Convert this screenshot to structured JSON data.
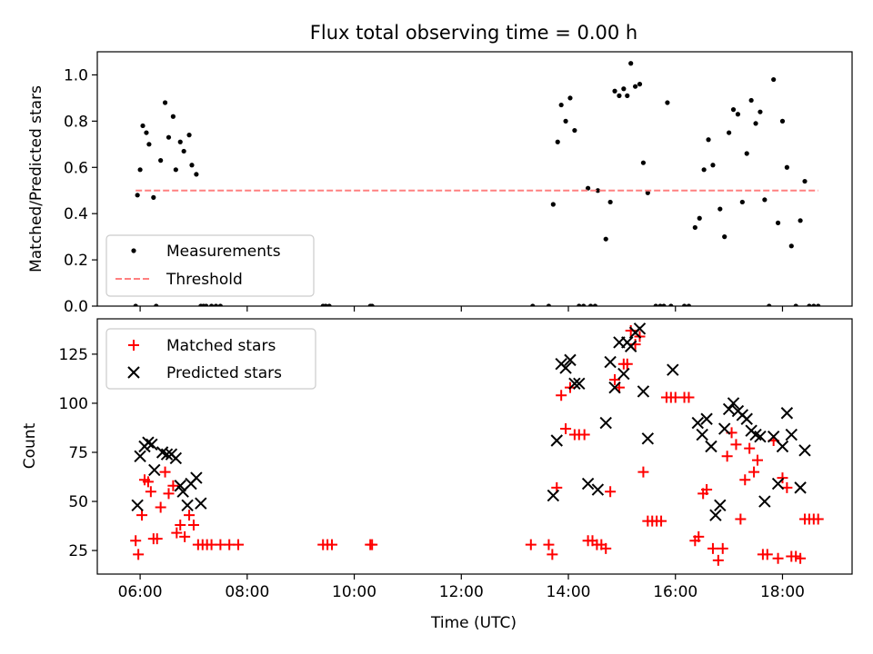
{
  "chart_data": [
    {
      "type": "scatter",
      "title": "Flux total observing time = 0.00 h",
      "xlabel": "",
      "ylabel": "Matched/Predicted stars",
      "xlim": [
        "05:12",
        "19:18"
      ],
      "ylim": [
        0,
        1.1
      ],
      "x_tick_labels": [
        "06:00",
        "08:00",
        "10:00",
        "12:00",
        "14:00",
        "16:00",
        "18:00"
      ],
      "y_ticks": [
        0.0,
        0.2,
        0.4,
        0.6,
        0.8,
        1.0
      ],
      "y_tick_labels": [
        "0.0",
        "0.2",
        "0.4",
        "0.6",
        "0.8",
        "1.0"
      ],
      "legend_position": "lower-left",
      "series": [
        {
          "name": "Measurements",
          "color": "#000000",
          "marker": "dot",
          "points": [
            [
              "05:55",
              0.0
            ],
            [
              "05:57",
              0.48
            ],
            [
              "06:00",
              0.59
            ],
            [
              "06:03",
              0.78
            ],
            [
              "06:07",
              0.75
            ],
            [
              "06:10",
              0.7
            ],
            [
              "06:15",
              0.47
            ],
            [
              "06:18",
              0.0
            ],
            [
              "06:23",
              0.63
            ],
            [
              "06:28",
              0.88
            ],
            [
              "06:32",
              0.73
            ],
            [
              "06:37",
              0.82
            ],
            [
              "06:40",
              0.59
            ],
            [
              "06:45",
              0.71
            ],
            [
              "06:49",
              0.67
            ],
            [
              "06:55",
              0.74
            ],
            [
              "06:58",
              0.61
            ],
            [
              "07:03",
              0.57
            ],
            [
              "07:08",
              0.0
            ],
            [
              "07:11",
              0.0
            ],
            [
              "07:14",
              0.0
            ],
            [
              "07:20",
              0.0
            ],
            [
              "07:25",
              0.0
            ],
            [
              "07:30",
              0.0
            ],
            [
              "09:25",
              0.0
            ],
            [
              "09:28",
              0.0
            ],
            [
              "09:32",
              0.0
            ],
            [
              "10:18",
              0.0
            ],
            [
              "10:20",
              0.0
            ],
            [
              "13:20",
              0.0
            ],
            [
              "13:38",
              0.0
            ],
            [
              "13:43",
              0.44
            ],
            [
              "13:48",
              0.71
            ],
            [
              "13:52",
              0.87
            ],
            [
              "13:57",
              0.8
            ],
            [
              "14:02",
              0.9
            ],
            [
              "14:07",
              0.76
            ],
            [
              "14:12",
              0.0
            ],
            [
              "14:17",
              0.0
            ],
            [
              "14:22",
              0.51
            ],
            [
              "14:25",
              0.0
            ],
            [
              "14:30",
              0.0
            ],
            [
              "14:33",
              0.5
            ],
            [
              "14:42",
              0.29
            ],
            [
              "14:47",
              0.45
            ],
            [
              "14:52",
              0.93
            ],
            [
              "14:57",
              0.91
            ],
            [
              "15:02",
              0.94
            ],
            [
              "15:06",
              0.91
            ],
            [
              "15:10",
              1.05
            ],
            [
              "15:15",
              0.95
            ],
            [
              "15:20",
              0.96
            ],
            [
              "15:24",
              0.62
            ],
            [
              "15:29",
              0.49
            ],
            [
              "15:38",
              0.0
            ],
            [
              "15:43",
              0.0
            ],
            [
              "15:47",
              0.0
            ],
            [
              "15:51",
              0.88
            ],
            [
              "15:55",
              0.0
            ],
            [
              "16:10",
              0.0
            ],
            [
              "16:15",
              0.0
            ],
            [
              "16:22",
              0.34
            ],
            [
              "16:27",
              0.38
            ],
            [
              "16:32",
              0.59
            ],
            [
              "16:37",
              0.72
            ],
            [
              "16:42",
              0.61
            ],
            [
              "16:50",
              0.42
            ],
            [
              "16:55",
              0.3
            ],
            [
              "17:00",
              0.75
            ],
            [
              "17:05",
              0.85
            ],
            [
              "17:10",
              0.83
            ],
            [
              "17:15",
              0.45
            ],
            [
              "17:20",
              0.66
            ],
            [
              "17:25",
              0.89
            ],
            [
              "17:30",
              0.79
            ],
            [
              "17:35",
              0.84
            ],
            [
              "17:40",
              0.46
            ],
            [
              "17:45",
              0.0
            ],
            [
              "17:50",
              0.98
            ],
            [
              "17:55",
              0.36
            ],
            [
              "18:00",
              0.8
            ],
            [
              "18:05",
              0.6
            ],
            [
              "18:10",
              0.26
            ],
            [
              "18:15",
              0.0
            ],
            [
              "18:20",
              0.37
            ],
            [
              "18:25",
              0.54
            ],
            [
              "18:30",
              0.0
            ],
            [
              "18:35",
              0.0
            ],
            [
              "18:40",
              0.0
            ]
          ]
        },
        {
          "name": "Threshold",
          "color": "#ff8080",
          "style": "dashed",
          "points": [
            [
              "05:55",
              0.5
            ],
            [
              "18:40",
              0.5
            ]
          ]
        }
      ]
    },
    {
      "type": "scatter",
      "title": "",
      "xlabel": "Time (UTC)",
      "ylabel": "Count",
      "xlim": [
        "05:12",
        "19:18"
      ],
      "ylim": [
        13,
        143
      ],
      "x_tick_labels": [
        "06:00",
        "08:00",
        "10:00",
        "12:00",
        "14:00",
        "16:00",
        "18:00"
      ],
      "y_ticks": [
        25,
        50,
        75,
        100,
        125
      ],
      "y_tick_labels": [
        "25",
        "50",
        "75",
        "100",
        "125"
      ],
      "legend_position": "top-left",
      "series": [
        {
          "name": "Matched stars",
          "color": "#ff0000",
          "marker": "plus",
          "points": [
            [
              "05:55",
              30
            ],
            [
              "05:58",
              23
            ],
            [
              "06:02",
              43
            ],
            [
              "06:05",
              61
            ],
            [
              "06:09",
              60
            ],
            [
              "06:12",
              55
            ],
            [
              "06:15",
              31
            ],
            [
              "06:19",
              31
            ],
            [
              "06:23",
              47
            ],
            [
              "06:28",
              65
            ],
            [
              "06:32",
              54
            ],
            [
              "06:37",
              58
            ],
            [
              "06:41",
              34
            ],
            [
              "06:45",
              38
            ],
            [
              "06:50",
              32
            ],
            [
              "06:55",
              43
            ],
            [
              "07:00",
              38
            ],
            [
              "07:05",
              28
            ],
            [
              "07:10",
              28
            ],
            [
              "07:15",
              28
            ],
            [
              "07:20",
              28
            ],
            [
              "07:30",
              28
            ],
            [
              "07:40",
              28
            ],
            [
              "07:50",
              28
            ],
            [
              "09:25",
              28
            ],
            [
              "09:30",
              28
            ],
            [
              "09:35",
              28
            ],
            [
              "10:18",
              28
            ],
            [
              "10:20",
              28
            ],
            [
              "13:18",
              28
            ],
            [
              "13:38",
              28
            ],
            [
              "13:42",
              23
            ],
            [
              "13:47",
              57
            ],
            [
              "13:52",
              104
            ],
            [
              "13:57",
              87
            ],
            [
              "14:02",
              108
            ],
            [
              "14:07",
              84
            ],
            [
              "14:12",
              84
            ],
            [
              "14:18",
              84
            ],
            [
              "14:22",
              30
            ],
            [
              "14:27",
              30
            ],
            [
              "14:32",
              28
            ],
            [
              "14:37",
              28
            ],
            [
              "14:42",
              26
            ],
            [
              "14:47",
              55
            ],
            [
              "14:52",
              112
            ],
            [
              "14:57",
              108
            ],
            [
              "15:02",
              120
            ],
            [
              "15:06",
              120
            ],
            [
              "15:10",
              137
            ],
            [
              "15:15",
              130
            ],
            [
              "15:20",
              134
            ],
            [
              "15:24",
              65
            ],
            [
              "15:29",
              40
            ],
            [
              "15:34",
              40
            ],
            [
              "15:39",
              40
            ],
            [
              "15:44",
              40
            ],
            [
              "15:50",
              103
            ],
            [
              "15:55",
              103
            ],
            [
              "16:00",
              103
            ],
            [
              "16:10",
              103
            ],
            [
              "16:15",
              103
            ],
            [
              "16:22",
              30
            ],
            [
              "16:26",
              32
            ],
            [
              "16:31",
              54
            ],
            [
              "16:35",
              56
            ],
            [
              "16:42",
              26
            ],
            [
              "16:48",
              20
            ],
            [
              "16:53",
              26
            ],
            [
              "16:58",
              73
            ],
            [
              "17:03",
              85
            ],
            [
              "17:08",
              79
            ],
            [
              "17:13",
              41
            ],
            [
              "17:18",
              61
            ],
            [
              "17:23",
              77
            ],
            [
              "17:28",
              65
            ],
            [
              "17:32",
              71
            ],
            [
              "17:38",
              23
            ],
            [
              "17:43",
              23
            ],
            [
              "17:50",
              81
            ],
            [
              "17:55",
              21
            ],
            [
              "18:00",
              62
            ],
            [
              "18:05",
              57
            ],
            [
              "18:10",
              22
            ],
            [
              "18:15",
              22
            ],
            [
              "18:20",
              21
            ],
            [
              "18:25",
              41
            ],
            [
              "18:30",
              41
            ],
            [
              "18:35",
              41
            ],
            [
              "18:40",
              41
            ]
          ]
        },
        {
          "name": "Predicted stars",
          "color": "#000000",
          "marker": "x",
          "points": [
            [
              "05:57",
              48
            ],
            [
              "06:00",
              73
            ],
            [
              "06:05",
              78
            ],
            [
              "06:09",
              80
            ],
            [
              "06:13",
              79
            ],
            [
              "06:16",
              66
            ],
            [
              "06:25",
              75
            ],
            [
              "06:30",
              74
            ],
            [
              "06:35",
              74
            ],
            [
              "06:40",
              72
            ],
            [
              "06:45",
              58
            ],
            [
              "06:48",
              55
            ],
            [
              "06:53",
              48
            ],
            [
              "06:57",
              59
            ],
            [
              "07:03",
              62
            ],
            [
              "07:08",
              49
            ],
            [
              "13:43",
              53
            ],
            [
              "13:47",
              81
            ],
            [
              "13:52",
              120
            ],
            [
              "13:57",
              118
            ],
            [
              "14:02",
              122
            ],
            [
              "14:07",
              110
            ],
            [
              "14:12",
              110
            ],
            [
              "14:22",
              59
            ],
            [
              "14:33",
              56
            ],
            [
              "14:42",
              90
            ],
            [
              "14:47",
              121
            ],
            [
              "14:52",
              108
            ],
            [
              "14:57",
              131
            ],
            [
              "15:02",
              115
            ],
            [
              "15:06",
              131
            ],
            [
              "15:10",
              129
            ],
            [
              "15:15",
              136
            ],
            [
              "15:20",
              138
            ],
            [
              "15:24",
              106
            ],
            [
              "15:29",
              82
            ],
            [
              "15:57",
              117
            ],
            [
              "16:25",
              90
            ],
            [
              "16:30",
              84
            ],
            [
              "16:35",
              92
            ],
            [
              "16:40",
              78
            ],
            [
              "16:45",
              43
            ],
            [
              "16:50",
              48
            ],
            [
              "16:55",
              87
            ],
            [
              "17:00",
              97
            ],
            [
              "17:05",
              100
            ],
            [
              "17:10",
              96
            ],
            [
              "17:15",
              94
            ],
            [
              "17:20",
              92
            ],
            [
              "17:25",
              86
            ],
            [
              "17:30",
              84
            ],
            [
              "17:35",
              83
            ],
            [
              "17:40",
              50
            ],
            [
              "17:50",
              83
            ],
            [
              "17:55",
              59
            ],
            [
              "18:00",
              78
            ],
            [
              "18:05",
              95
            ],
            [
              "18:10",
              84
            ],
            [
              "18:20",
              57
            ],
            [
              "18:25",
              76
            ]
          ]
        }
      ]
    }
  ]
}
